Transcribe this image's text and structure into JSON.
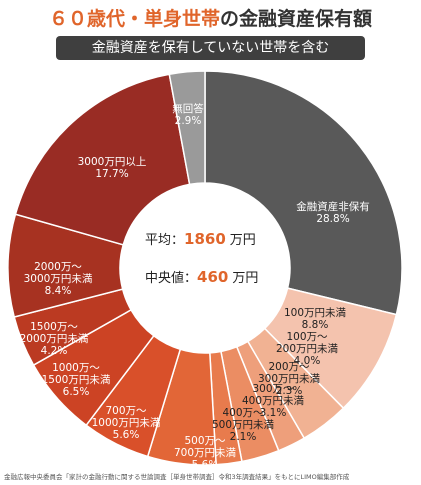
{
  "title": {
    "accent": "６０歳代・単身世帯",
    "rest": "の金融資産保有額"
  },
  "subtitle": "金融資産を保有していない世帯を含む",
  "center": {
    "avg_label": "平均：",
    "avg_value": "1860",
    "avg_unit": "万円",
    "median_label": "中央値：",
    "median_value": "460",
    "median_unit": "万円"
  },
  "footnote": "金融広報中央委員会「家計の金融行動に関する世論調査［単身世帯調査］令和3年調査結果」をもとにLIMO編集部作成",
  "chart_data": {
    "type": "pie",
    "donut": true,
    "slices": [
      {
        "label": "金融資産非保有",
        "value": 28.8,
        "pct_text": "28.8%",
        "color": "#595959"
      },
      {
        "label": "100万円未満",
        "value": 8.8,
        "pct_text": "8.8%",
        "color": "#f4c3ae"
      },
      {
        "label": "100万〜 200万円未満",
        "value": 4.0,
        "pct_text": "4.0%",
        "color": "#f1b293"
      },
      {
        "label": "200万〜 300万円未満",
        "value": 2.3,
        "pct_text": "2.3%",
        "color": "#ee9f7b"
      },
      {
        "label": "300万〜 400万円未満",
        "value": 3.1,
        "pct_text": "3.1%",
        "color": "#eb8d63"
      },
      {
        "label": "400万〜 500万円未満",
        "value": 2.1,
        "pct_text": "2.1%",
        "color": "#e87b4d"
      },
      {
        "label": "500万〜 700万円未満",
        "value": 5.6,
        "pct_text": "5.6%",
        "color": "#e26637"
      },
      {
        "label": "700万〜 1000万円未満",
        "value": 5.6,
        "pct_text": "5.6%",
        "color": "#d9502a"
      },
      {
        "label": "1000万〜 1500万円未満",
        "value": 6.5,
        "pct_text": "6.5%",
        "color": "#cc4324"
      },
      {
        "label": "1500万〜 2000万円未満",
        "value": 4.2,
        "pct_text": "4.2%",
        "color": "#bb3a22"
      },
      {
        "label": "2000万〜 3000万円未満",
        "value": 8.4,
        "pct_text": "8.4%",
        "color": "#a73221"
      },
      {
        "label": "3000万円以上",
        "value": 17.7,
        "pct_text": "17.7%",
        "color": "#992c24"
      },
      {
        "label": "無回答",
        "value": 2.9,
        "pct_text": "2.9%",
        "color": "#9a9a9a"
      }
    ]
  }
}
